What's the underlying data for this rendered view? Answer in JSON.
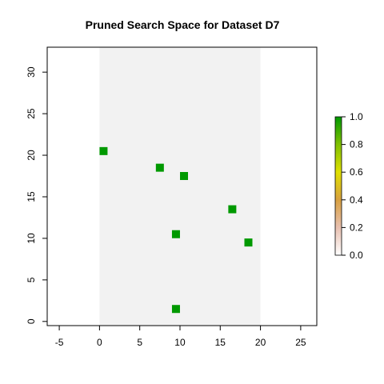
{
  "chart_data": {
    "type": "scatter",
    "title": "Pruned Search Space for Dataset D7",
    "xlabel": "",
    "ylabel": "",
    "xlim": [
      -6.5,
      27
    ],
    "ylim": [
      -0.5,
      33
    ],
    "x_ticks": [
      -5,
      0,
      5,
      10,
      15,
      20,
      25
    ],
    "y_ticks": [
      0,
      5,
      10,
      15,
      20,
      25,
      30
    ],
    "shaded_region": {
      "x": [
        0,
        20
      ],
      "color": "#f2f2f2"
    },
    "points": [
      {
        "x": 0.5,
        "y": 20.5,
        "value": 1.0
      },
      {
        "x": 7.5,
        "y": 18.5,
        "value": 1.0
      },
      {
        "x": 10.5,
        "y": 17.5,
        "value": 1.0
      },
      {
        "x": 16.5,
        "y": 13.5,
        "value": 1.0
      },
      {
        "x": 9.5,
        "y": 10.5,
        "value": 1.0
      },
      {
        "x": 18.5,
        "y": 9.5,
        "value": 1.0
      },
      {
        "x": 9.5,
        "y": 1.5,
        "value": 1.0
      }
    ],
    "point_color": "#009900",
    "grid": false,
    "colorbar": {
      "range": [
        0,
        1
      ],
      "ticks": [
        "0.0",
        "0.2",
        "0.4",
        "0.6",
        "0.8",
        "1.0"
      ],
      "colors": [
        "#ffffff",
        "#e8b8a8",
        "#d8b030",
        "#e0e000",
        "#80c000",
        "#009900"
      ]
    }
  }
}
